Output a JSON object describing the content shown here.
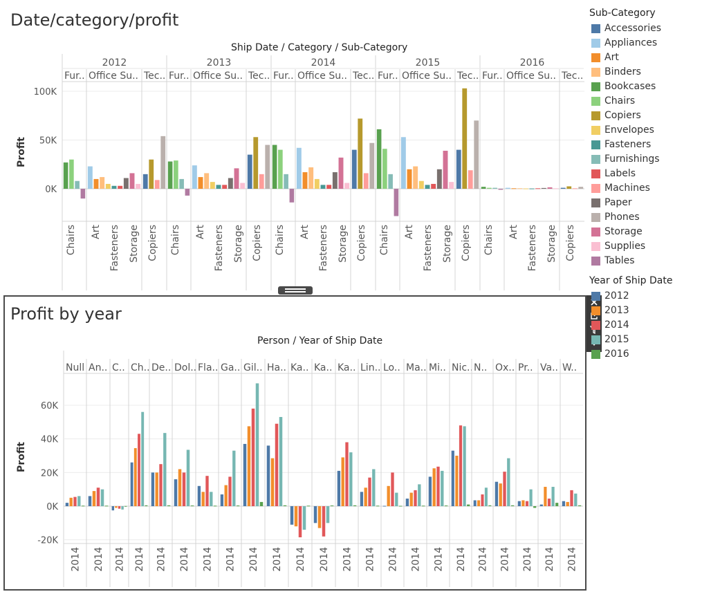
{
  "top_chart": {
    "title": "Date/category/profit",
    "header_title": "Ship Date / Category / Sub-Category",
    "y_axis_label": "Profit",
    "y_ticks": [
      "100K",
      "50K",
      "0K"
    ],
    "y_tick_values": [
      100000,
      50000,
      0
    ],
    "years": [
      "2012",
      "2013",
      "2014",
      "2015",
      "2016"
    ],
    "category_labels": [
      "Fur..",
      "Office Su..",
      "Tec.."
    ],
    "category_labels_2016": [
      "Fur..",
      "Office Su..",
      "Tec.."
    ],
    "subcategory_tick_labels": [
      "Chairs",
      "Art",
      "Fasteners",
      "Storage",
      "Copiers"
    ]
  },
  "bottom_chart": {
    "title": "Profit by year",
    "header_title": "Person / Year of Ship Date",
    "y_axis_label": "Profit",
    "y_ticks": [
      "60K",
      "40K",
      "20K",
      "0K",
      "-20K"
    ],
    "y_tick_values": [
      60000,
      40000,
      20000,
      0,
      -20000
    ],
    "persons": [
      "Null",
      "An..",
      "C..",
      "Ch..",
      "De..",
      "Dol..",
      "Fla..",
      "Ga..",
      "Gil..",
      "Ha..",
      "Ka..",
      "Ka..",
      "Ka..",
      "Lin..",
      "Lo..",
      "Ma..",
      "Mi..",
      "Nic..",
      "N..",
      "Ox..",
      "Pr..",
      "Va..",
      "W.."
    ],
    "x_tick_label": "2014"
  },
  "legend": {
    "subcategory_title": "Sub-Category",
    "subcategories": [
      {
        "name": "Accessories",
        "color": "#4e79a7"
      },
      {
        "name": "Appliances",
        "color": "#a0cbe8"
      },
      {
        "name": "Art",
        "color": "#f28e2b"
      },
      {
        "name": "Binders",
        "color": "#ffbe7d"
      },
      {
        "name": "Bookcases",
        "color": "#59a14f"
      },
      {
        "name": "Chairs",
        "color": "#8cd17d"
      },
      {
        "name": "Copiers",
        "color": "#b6992d"
      },
      {
        "name": "Envelopes",
        "color": "#f1ce63"
      },
      {
        "name": "Fasteners",
        "color": "#499894"
      },
      {
        "name": "Furnishings",
        "color": "#86bcb6"
      },
      {
        "name": "Labels",
        "color": "#e15759"
      },
      {
        "name": "Machines",
        "color": "#ff9d9a"
      },
      {
        "name": "Paper",
        "color": "#79706e"
      },
      {
        "name": "Phones",
        "color": "#bab0ac"
      },
      {
        "name": "Storage",
        "color": "#d37295"
      },
      {
        "name": "Supplies",
        "color": "#fabfd2"
      },
      {
        "name": "Tables",
        "color": "#b07aa1"
      }
    ],
    "year_title": "Year of Ship Date",
    "years": [
      {
        "name": "2012",
        "color": "#4e79a7"
      },
      {
        "name": "2013",
        "color": "#f28e2b"
      },
      {
        "name": "2014",
        "color": "#e15759"
      },
      {
        "name": "2015",
        "color": "#76b7b2"
      },
      {
        "name": "2016",
        "color": "#59a14f"
      }
    ]
  },
  "toolbar": {
    "close_icon": "close-icon",
    "popout_icon": "popout-icon",
    "filter_icon": "filter-icon",
    "menu_icon": "chevron-down-icon"
  },
  "chart_data": [
    {
      "type": "bar",
      "title": "Date/category/profit",
      "xlabel": "Ship Date / Category / Sub-Category",
      "ylabel": "Profit",
      "ylim": [
        -36000,
        110000
      ],
      "grid": true,
      "legend": "right",
      "panes": [
        {
          "year": "2012",
          "category": "Fur..",
          "subcategories": [
            "Bookcases",
            "Chairs",
            "Furnishings",
            "Tables"
          ],
          "values": [
            27000,
            30000,
            8000,
            -10000
          ]
        },
        {
          "year": "2012",
          "category": "Office Su..",
          "subcategories": [
            "Appliances",
            "Art",
            "Binders",
            "Envelopes",
            "Fasteners",
            "Labels",
            "Paper",
            "Storage",
            "Supplies"
          ],
          "values": [
            23000,
            10000,
            12000,
            5000,
            3000,
            3000,
            11000,
            16000,
            5000
          ]
        },
        {
          "year": "2012",
          "category": "Tec..",
          "subcategories": [
            "Accessories",
            "Copiers",
            "Machines",
            "Phones"
          ],
          "values": [
            15000,
            30000,
            9000,
            54000
          ]
        },
        {
          "year": "2013",
          "category": "Fur..",
          "subcategories": [
            "Bookcases",
            "Chairs",
            "Furnishings",
            "Tables"
          ],
          "values": [
            28000,
            29000,
            10000,
            -7000
          ]
        },
        {
          "year": "2013",
          "category": "Office Su..",
          "subcategories": [
            "Appliances",
            "Art",
            "Binders",
            "Envelopes",
            "Fasteners",
            "Labels",
            "Paper",
            "Storage",
            "Supplies"
          ],
          "values": [
            24000,
            12000,
            16000,
            7000,
            4000,
            4000,
            11000,
            21000,
            6000
          ]
        },
        {
          "year": "2013",
          "category": "Tec..",
          "subcategories": [
            "Accessories",
            "Copiers",
            "Machines",
            "Phones"
          ],
          "values": [
            35000,
            53000,
            15000,
            45000
          ]
        },
        {
          "year": "2014",
          "category": "Fur..",
          "subcategories": [
            "Bookcases",
            "Chairs",
            "Furnishings",
            "Tables"
          ],
          "values": [
            45000,
            40000,
            15000,
            -14000
          ]
        },
        {
          "year": "2014",
          "category": "Office Su..",
          "subcategories": [
            "Appliances",
            "Art",
            "Binders",
            "Envelopes",
            "Fasteners",
            "Labels",
            "Paper",
            "Storage",
            "Supplies"
          ],
          "values": [
            42000,
            17000,
            22000,
            10000,
            4000,
            4000,
            17000,
            32000,
            6000
          ]
        },
        {
          "year": "2014",
          "category": "Tec..",
          "subcategories": [
            "Accessories",
            "Copiers",
            "Machines",
            "Phones"
          ],
          "values": [
            40000,
            72000,
            16000,
            47000
          ]
        },
        {
          "year": "2015",
          "category": "Fur..",
          "subcategories": [
            "Bookcases",
            "Chairs",
            "Furnishings",
            "Tables"
          ],
          "values": [
            61000,
            41000,
            15000,
            -28000
          ]
        },
        {
          "year": "2015",
          "category": "Office Su..",
          "subcategories": [
            "Appliances",
            "Art",
            "Binders",
            "Envelopes",
            "Fasteners",
            "Labels",
            "Paper",
            "Storage",
            "Supplies"
          ],
          "values": [
            53000,
            20000,
            23000,
            8000,
            4000,
            5000,
            20000,
            39000,
            7000
          ]
        },
        {
          "year": "2015",
          "category": "Tec..",
          "subcategories": [
            "Accessories",
            "Copiers",
            "Machines",
            "Phones"
          ],
          "values": [
            40000,
            103000,
            19000,
            70000
          ]
        },
        {
          "year": "2016",
          "category": "Fur..",
          "subcategories": [
            "Bookcases",
            "Chairs",
            "Furnishings",
            "Tables"
          ],
          "values": [
            2000,
            1000,
            1000,
            -1000
          ]
        },
        {
          "year": "2016",
          "category": "Office Su..",
          "subcategories": [
            "Appliances",
            "Art",
            "Binders",
            "Envelopes",
            "Fasteners",
            "Labels",
            "Paper",
            "Storage",
            "Supplies"
          ],
          "values": [
            1000,
            500,
            500,
            300,
            300,
            500,
            800,
            1500,
            500
          ]
        },
        {
          "year": "2016",
          "category": "Tec..",
          "subcategories": [
            "Accessories",
            "Copiers",
            "Machines",
            "Phones"
          ],
          "values": [
            1000,
            2500,
            500,
            2000
          ]
        }
      ]
    },
    {
      "type": "bar",
      "title": "Profit by year",
      "xlabel": "Person / Year of Ship Date",
      "ylabel": "Profit",
      "ylim": [
        -22000,
        76000
      ],
      "grid": true,
      "series_years": [
        "2012",
        "2013",
        "2014",
        "2015",
        "2016"
      ],
      "categories": [
        "Null",
        "An..",
        "C..",
        "Ch..",
        "De..",
        "Dol..",
        "Fla..",
        "Ga..",
        "Gil..",
        "Ha..",
        "Ka..",
        "Ka..",
        "Ka..",
        "Lin..",
        "Lo..",
        "Ma..",
        "Mi..",
        "Nic..",
        "N..",
        "Ox..",
        "Pr..",
        "Va..",
        "W.."
      ],
      "values": [
        [
          2000,
          5000,
          5500,
          6000,
          300
        ],
        [
          6000,
          9000,
          11000,
          10000,
          300
        ],
        [
          -2500,
          -1000,
          -1500,
          -2000,
          100
        ],
        [
          26000,
          34500,
          43000,
          56000,
          500
        ],
        [
          20000,
          20000,
          25000,
          43500,
          500
        ],
        [
          16000,
          22000,
          20000,
          33500,
          400
        ],
        [
          12000,
          8500,
          18000,
          8500,
          300
        ],
        [
          7000,
          12500,
          17500,
          33000,
          400
        ],
        [
          37000,
          47500,
          58000,
          73000,
          2500
        ],
        [
          36000,
          28500,
          49000,
          53000,
          500
        ],
        [
          -11000,
          -12000,
          -18500,
          -14000,
          300
        ],
        [
          -10000,
          -13000,
          -18000,
          -10000,
          400
        ],
        [
          21000,
          29000,
          38000,
          32000,
          500
        ],
        [
          8500,
          11000,
          17000,
          22000,
          300
        ],
        [
          200,
          12000,
          20000,
          8000,
          200
        ],
        [
          4500,
          8000,
          9500,
          13000,
          300
        ],
        [
          17500,
          22500,
          23500,
          21000,
          400
        ],
        [
          33000,
          30000,
          48000,
          47500,
          1000
        ],
        [
          3500,
          3500,
          7000,
          11000,
          500
        ],
        [
          14500,
          13500,
          20500,
          28500,
          500
        ],
        [
          3000,
          3500,
          3000,
          10000,
          -1000
        ],
        [
          1000,
          11500,
          4500,
          11500,
          2000
        ],
        [
          3000,
          2500,
          9500,
          7500,
          500
        ]
      ]
    }
  ]
}
